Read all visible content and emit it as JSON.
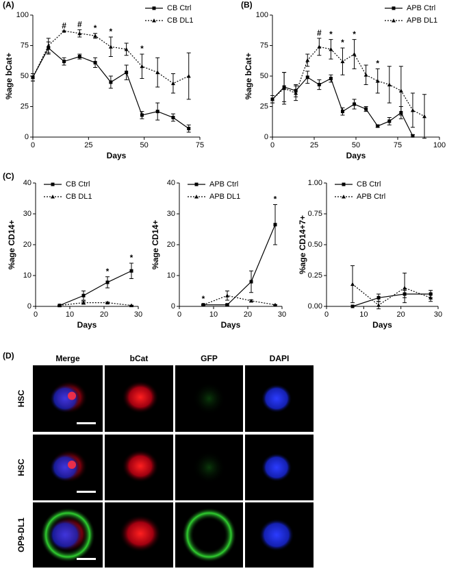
{
  "chart_data": [
    {
      "type": "line",
      "panel": "(A)",
      "xlabel": "Days",
      "ylabel": "%age bCat+",
      "x": [
        0,
        7,
        14,
        21,
        28,
        35,
        42,
        49,
        56,
        63,
        70
      ],
      "xlim": [
        0,
        75
      ],
      "xticks": [
        0,
        25,
        50,
        75
      ],
      "ylim": [
        0,
        100
      ],
      "yticks": [
        0,
        25,
        50,
        75,
        100
      ],
      "legend": "upper right",
      "series": [
        {
          "name": "CB Ctrl",
          "color": "#000000",
          "line_style": "solid",
          "marker": "square",
          "values": [
            49,
            73,
            62,
            66,
            61,
            45,
            53,
            18,
            21,
            16,
            7
          ],
          "errors": [
            3,
            5,
            3,
            2,
            4,
            5,
            6,
            3,
            7,
            3,
            3
          ]
        },
        {
          "name": "CB DL1",
          "color": "#000000",
          "line_style": "dotted",
          "marker": "triangle",
          "values": [
            49,
            75,
            87,
            85,
            83,
            74,
            72,
            58,
            53,
            44,
            50
          ],
          "errors": [
            3,
            6,
            0,
            3,
            2,
            8,
            5,
            10,
            12,
            8,
            19
          ]
        }
      ],
      "annotations": [
        {
          "x": 14,
          "text": "#"
        },
        {
          "x": 21,
          "text": "#"
        },
        {
          "x": 28,
          "text": "*"
        },
        {
          "x": 35,
          "text": "*"
        },
        {
          "x": 49,
          "text": "*"
        }
      ]
    },
    {
      "type": "line",
      "panel": "(B)",
      "xlabel": "Days",
      "ylabel": "%age bCat+",
      "x": [
        0,
        7,
        14,
        21,
        28,
        35,
        42,
        49,
        56,
        63,
        70,
        77,
        84,
        91
      ],
      "xlim": [
        0,
        100
      ],
      "xticks": [
        0,
        25,
        50,
        75,
        100
      ],
      "ylim": [
        0,
        100
      ],
      "yticks": [
        0,
        25,
        50,
        75,
        100
      ],
      "legend": "upper right",
      "series": [
        {
          "name": "APB Ctrl",
          "color": "#000000",
          "line_style": "solid",
          "marker": "square",
          "values": [
            31,
            41,
            38,
            49,
            43,
            48,
            21,
            27,
            23,
            9,
            13,
            20,
            1,
            null
          ],
          "errors": [
            3,
            12,
            5,
            5,
            4,
            3,
            3,
            4,
            2,
            1,
            3,
            5,
            1,
            null
          ]
        },
        {
          "name": "APB DL1",
          "color": "#000000",
          "line_style": "dotted",
          "marker": "triangle",
          "values": [
            31,
            40,
            36,
            63,
            74,
            72,
            62,
            68,
            51,
            46,
            43,
            38,
            22,
            17
          ],
          "errors": [
            3,
            13,
            6,
            5,
            7,
            8,
            11,
            12,
            8,
            10,
            15,
            20,
            14,
            18
          ]
        }
      ],
      "annotations": [
        {
          "x": 28,
          "text": "#"
        },
        {
          "x": 35,
          "text": "*"
        },
        {
          "x": 42,
          "text": "*"
        },
        {
          "x": 49,
          "text": "*"
        },
        {
          "x": 63,
          "text": "*"
        }
      ]
    },
    {
      "type": "line",
      "panel": "(C)",
      "xlabel": "Days",
      "ylabel": "%age CD14+",
      "x": [
        7,
        14,
        21,
        28
      ],
      "xlim": [
        0,
        30
      ],
      "xticks": [
        0,
        10,
        20,
        30
      ],
      "ylim": [
        0,
        40
      ],
      "yticks": [
        0,
        10,
        20,
        30,
        40
      ],
      "legend": "upper left",
      "series": [
        {
          "name": "CB Ctrl",
          "color": "#000000",
          "line_style": "solid",
          "marker": "square",
          "values": [
            0.3,
            3.5,
            7.8,
            11.5
          ],
          "errors": [
            0.1,
            1.5,
            1.8,
            2.5
          ]
        },
        {
          "name": "CB DL1",
          "color": "#000000",
          "line_style": "dotted",
          "marker": "triangle",
          "values": [
            0.3,
            1.2,
            1.2,
            0.3
          ],
          "errors": [
            0,
            0.5,
            0.2,
            0.1
          ]
        }
      ],
      "annotations": [
        {
          "x": 21,
          "text": "*"
        },
        {
          "x": 28,
          "text": "*"
        }
      ]
    },
    {
      "type": "line",
      "xlabel": "Days",
      "ylabel": "%age CD14+",
      "x": [
        7,
        14,
        21,
        28
      ],
      "xlim": [
        0,
        30
      ],
      "xticks": [
        0,
        10,
        20,
        30
      ],
      "ylim": [
        0,
        40
      ],
      "yticks": [
        0,
        10,
        20,
        30,
        40
      ],
      "legend": "upper left",
      "series": [
        {
          "name": "APB Ctrl",
          "color": "#000000",
          "line_style": "solid",
          "marker": "square",
          "values": [
            0.5,
            0.5,
            8,
            26.5
          ],
          "errors": [
            0.2,
            0.3,
            3.5,
            6.5
          ]
        },
        {
          "name": "APB DL1",
          "color": "#000000",
          "line_style": "dotted",
          "marker": "triangle",
          "values": [
            0.5,
            3.5,
            1.8,
            0.5
          ],
          "errors": [
            0,
            1.5,
            0.3,
            0.1
          ]
        }
      ],
      "annotations": [
        {
          "x": 7,
          "text": "*"
        },
        {
          "x": 28,
          "text": "*"
        }
      ]
    },
    {
      "type": "line",
      "xlabel": "Days",
      "ylabel": "%age CD14+7+",
      "x": [
        7,
        14,
        21,
        28
      ],
      "xlim": [
        0,
        30
      ],
      "xticks": [
        0,
        10,
        20,
        30
      ],
      "ylim": [
        0,
        1
      ],
      "yticks": [
        {
          "value": 0,
          "label": "0.00"
        },
        {
          "value": 0.25,
          "label": "0.25"
        },
        {
          "value": 0.5,
          "label": "0.50"
        },
        {
          "value": 0.75,
          "label": "0.75"
        },
        {
          "value": 1,
          "label": "1.00"
        }
      ],
      "legend": "upper left",
      "series": [
        {
          "name": "CB Ctrl",
          "color": "#000000",
          "line_style": "solid",
          "marker": "square",
          "values": [
            0,
            0.07,
            0.1,
            0.1
          ],
          "errors": [
            0,
            0.03,
            0.03,
            0.03
          ]
        },
        {
          "name": "APB Ctrl",
          "color": "#000000",
          "line_style": "dotted",
          "marker": "triangle",
          "values": [
            0.18,
            0.01,
            0.15,
            0.07
          ],
          "errors": [
            0.15,
            0.03,
            0.12,
            0.03
          ]
        }
      ],
      "annotations": []
    }
  ],
  "panel_d": {
    "label": "(D)",
    "columns": [
      "Merge",
      "bCat",
      "GFP",
      "DAPI"
    ],
    "rows": [
      "HSC",
      "HSC",
      "OP9-DL1"
    ]
  }
}
